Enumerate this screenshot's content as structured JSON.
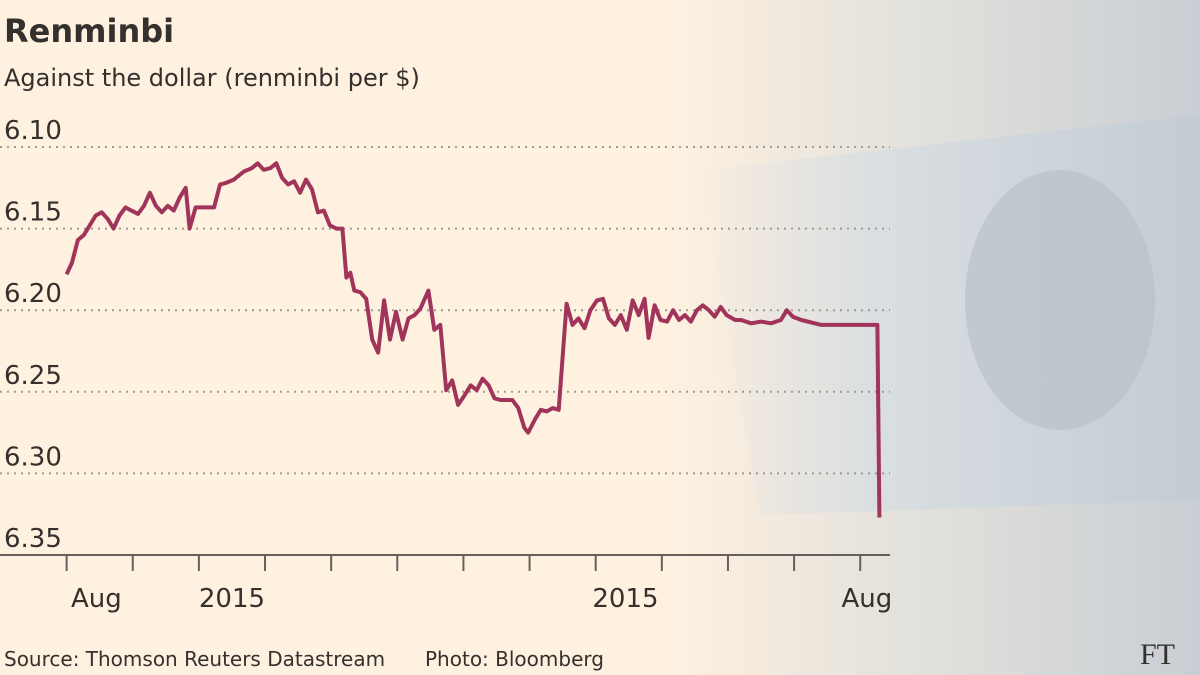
{
  "chart_data": {
    "type": "line",
    "title": "Renminbi",
    "subtitle": "Against the dollar (renminbi per $)",
    "source": "Source: Thomson Reuters Datastream",
    "photo_credit": "Photo: Bloomberg",
    "logo": "FT",
    "x": [
      0,
      0.08,
      0.17,
      0.26,
      0.35,
      0.44,
      0.53,
      0.62,
      0.71,
      0.8,
      0.89,
      0.98,
      1.08,
      1.17,
      1.26,
      1.35,
      1.44,
      1.53,
      1.62,
      1.71,
      1.8,
      1.86,
      1.95,
      2.09,
      2.23,
      2.32,
      2.41,
      2.53,
      2.68,
      2.8,
      2.89,
      2.98,
      3.08,
      3.17,
      3.26,
      3.35,
      3.44,
      3.53,
      3.62,
      3.71,
      3.8,
      3.89,
      3.98,
      4.08,
      4.17,
      4.23,
      4.29,
      4.35,
      4.44,
      4.53,
      4.62,
      4.71,
      4.8,
      4.89,
      4.98,
      5.08,
      5.17,
      5.26,
      5.35,
      5.47,
      5.56,
      5.65,
      5.74,
      5.83,
      5.92,
      6.02,
      6.11,
      6.2,
      6.29,
      6.38,
      6.47,
      6.56,
      6.74,
      6.83,
      6.92,
      6.98,
      7.08,
      7.17,
      7.26,
      7.35,
      7.44,
      7.56,
      7.65,
      7.74,
      7.83,
      7.92,
      8.02,
      8.11,
      8.2,
      8.29,
      8.38,
      8.47,
      8.56,
      8.65,
      8.74,
      8.8,
      8.89,
      8.98,
      9.08,
      9.17,
      9.26,
      9.35,
      9.44,
      9.53,
      9.62,
      9.71,
      9.8,
      9.89,
      9.98,
      10.11,
      10.2,
      10.35,
      10.5,
      10.65,
      10.8,
      10.89,
      10.98,
      11.11,
      11.41,
      11.71,
      12.02,
      12.2,
      12.26,
      12.29
    ],
    "values": [
      6.178,
      6.171,
      6.157,
      6.154,
      6.148,
      6.142,
      6.14,
      6.144,
      6.15,
      6.142,
      6.137,
      6.139,
      6.141,
      6.136,
      6.128,
      6.136,
      6.14,
      6.136,
      6.139,
      6.131,
      6.125,
      6.15,
      6.137,
      6.137,
      6.137,
      6.123,
      6.122,
      6.12,
      6.115,
      6.113,
      6.11,
      6.114,
      6.113,
      6.11,
      6.119,
      6.123,
      6.121,
      6.128,
      6.12,
      6.126,
      6.14,
      6.139,
      6.148,
      6.15,
      6.15,
      6.18,
      6.177,
      6.188,
      6.189,
      6.193,
      6.218,
      6.226,
      6.194,
      6.218,
      6.201,
      6.218,
      6.205,
      6.203,
      6.199,
      6.188,
      6.212,
      6.209,
      6.249,
      6.243,
      6.258,
      6.252,
      6.246,
      6.249,
      6.242,
      6.246,
      6.254,
      6.255,
      6.255,
      6.26,
      6.272,
      6.275,
      6.267,
      6.261,
      6.262,
      6.26,
      6.261,
      6.196,
      6.209,
      6.205,
      6.211,
      6.2,
      6.194,
      6.193,
      6.205,
      6.209,
      6.203,
      6.212,
      6.194,
      6.203,
      6.193,
      6.217,
      6.197,
      6.206,
      6.207,
      6.2,
      6.206,
      6.203,
      6.207,
      6.2,
      6.197,
      6.2,
      6.204,
      6.198,
      6.203,
      6.206,
      6.206,
      6.208,
      6.207,
      6.208,
      6.206,
      6.2,
      6.204,
      6.206,
      6.209,
      6.209,
      6.209,
      6.209,
      6.209,
      6.327
    ],
    "color": "#a0345a",
    "xlim": [
      -0.1,
      12.45
    ],
    "xtick_marks": [
      0,
      1,
      2,
      3,
      4,
      5,
      6,
      7,
      8,
      9,
      10,
      11,
      12
    ],
    "xtick_labels": [
      {
        "value": 0.45,
        "label": "Aug"
      },
      {
        "value": 2.5,
        "label": "2015"
      },
      {
        "value": 8.45,
        "label": "2015"
      },
      {
        "value": 12.1,
        "label": "Aug"
      }
    ],
    "ylim": [
      6.1,
      6.35
    ],
    "y_inverted": true,
    "yticks": [
      {
        "value": 6.1,
        "label": "6.10"
      },
      {
        "value": 6.15,
        "label": "6.15"
      },
      {
        "value": 6.2,
        "label": "6.20"
      },
      {
        "value": 6.25,
        "label": "6.25"
      },
      {
        "value": 6.3,
        "label": "6.30"
      },
      {
        "value": 6.35,
        "label": "6.35"
      }
    ],
    "grid": true
  }
}
